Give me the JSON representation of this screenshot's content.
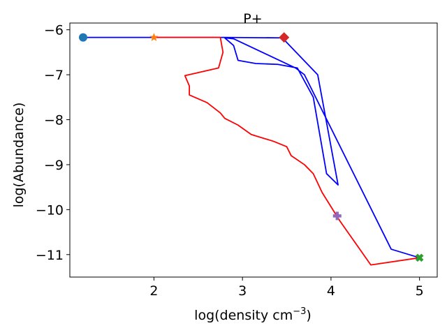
{
  "chart_data": {
    "type": "line",
    "title": "P+",
    "xlabel": "log(density cm",
    "xlabel_sup": "−3",
    "xlabel_suffix": ")",
    "ylabel": "log(Abundance)",
    "xlim": [
      1.05,
      5.2
    ],
    "ylim": [
      -11.5,
      -5.85
    ],
    "x_ticks": [
      2,
      3,
      4,
      5
    ],
    "x_tick_labels": [
      "2",
      "3",
      "4",
      "5"
    ],
    "y_ticks": [
      -6,
      -7,
      -8,
      -9,
      -10,
      -11
    ],
    "y_tick_labels": [
      "−6",
      "−7",
      "−8",
      "−9",
      "−10",
      "−11"
    ],
    "grid": false,
    "series": [
      {
        "color": "#0000ff",
        "points": [
          [
            1.2,
            -6.17
          ],
          [
            2.0,
            -6.17
          ],
          [
            2.8,
            -6.17
          ],
          [
            3.45,
            -6.18
          ],
          [
            3.85,
            -7.0
          ],
          [
            4.08,
            -9.45
          ],
          [
            3.95,
            -9.2
          ],
          [
            3.8,
            -7.5
          ],
          [
            3.62,
            -6.85
          ],
          [
            3.4,
            -6.77
          ],
          [
            3.15,
            -6.75
          ],
          [
            2.95,
            -6.68
          ],
          [
            2.9,
            -6.35
          ],
          [
            2.8,
            -6.18
          ],
          [
            2.9,
            -6.2
          ],
          [
            3.6,
            -6.85
          ],
          [
            3.7,
            -7.0
          ],
          [
            4.68,
            -10.88
          ],
          [
            5.0,
            -11.07
          ]
        ]
      },
      {
        "color": "#ff0000",
        "points": [
          [
            2.0,
            -6.17
          ],
          [
            2.75,
            -6.17
          ],
          [
            2.78,
            -6.5
          ],
          [
            2.73,
            -6.85
          ],
          [
            2.35,
            -7.02
          ],
          [
            2.4,
            -7.25
          ],
          [
            2.4,
            -7.45
          ],
          [
            2.6,
            -7.62
          ],
          [
            2.75,
            -7.85
          ],
          [
            2.8,
            -7.97
          ],
          [
            2.95,
            -8.12
          ],
          [
            3.1,
            -8.33
          ],
          [
            3.35,
            -8.48
          ],
          [
            3.5,
            -8.6
          ],
          [
            3.55,
            -8.8
          ],
          [
            3.7,
            -9.0
          ],
          [
            3.8,
            -9.2
          ],
          [
            3.9,
            -9.62
          ],
          [
            4.1,
            -10.25
          ],
          [
            4.45,
            -11.23
          ],
          [
            5.0,
            -11.07
          ]
        ]
      }
    ],
    "markers": [
      {
        "shape": "circle",
        "color": "#1f77b4",
        "x": 1.2,
        "y": -6.17
      },
      {
        "shape": "star",
        "color": "#ff7f0e",
        "x": 2.0,
        "y": -6.17
      },
      {
        "shape": "diamond",
        "color": "#d62728",
        "x": 3.47,
        "y": -6.17
      },
      {
        "shape": "plus",
        "color": "#9467bd",
        "x": 4.07,
        "y": -10.14
      },
      {
        "shape": "cross",
        "color": "#2ca02c",
        "x": 5.0,
        "y": -11.07
      }
    ]
  }
}
